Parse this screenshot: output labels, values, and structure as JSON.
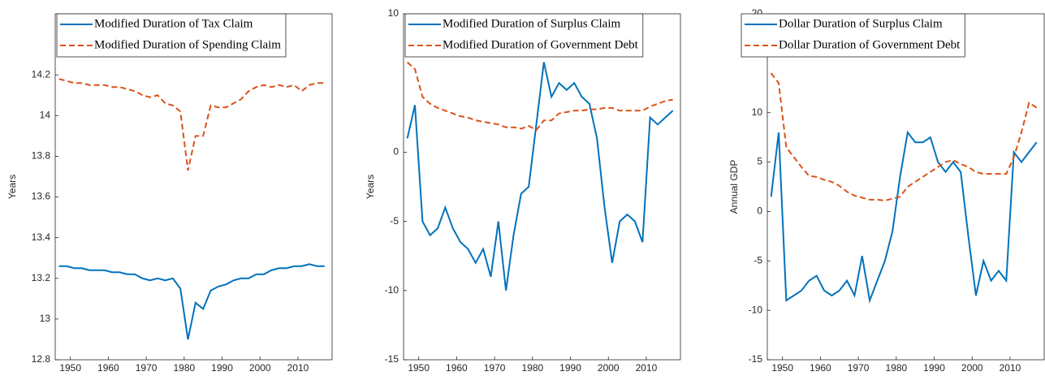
{
  "chart_data": [
    {
      "type": "line",
      "ylabel": "Years",
      "legend": "upper left",
      "x": [
        1947,
        1949,
        1951,
        1953,
        1955,
        1957,
        1959,
        1961,
        1963,
        1965,
        1967,
        1969,
        1971,
        1973,
        1975,
        1977,
        1979,
        1981,
        1983,
        1985,
        1987,
        1989,
        1991,
        1993,
        1995,
        1997,
        1999,
        2001,
        2003,
        2005,
        2007,
        2009,
        2011,
        2013,
        2015,
        2017
      ],
      "xlim": [
        1946,
        2019
      ],
      "xticks": [
        1950,
        1960,
        1970,
        1980,
        1990,
        2000,
        2010
      ],
      "ylim": [
        12.8,
        14.5
      ],
      "yticks": [
        12.8,
        13,
        13.2,
        13.4,
        13.6,
        13.8,
        14,
        14.2
      ],
      "series": [
        {
          "name": "Modified Duration of Tax Claim",
          "color": "#0072bd",
          "dash": "solid",
          "values": [
            13.26,
            13.26,
            13.25,
            13.25,
            13.24,
            13.24,
            13.24,
            13.23,
            13.23,
            13.22,
            13.22,
            13.2,
            13.19,
            13.2,
            13.19,
            13.2,
            13.15,
            12.9,
            13.08,
            13.05,
            13.14,
            13.16,
            13.17,
            13.19,
            13.2,
            13.2,
            13.22,
            13.22,
            13.24,
            13.25,
            13.25,
            13.26,
            13.26,
            13.27,
            13.26,
            13.26
          ]
        },
        {
          "name": "Modified Duration of Spending Claim",
          "color": "#d95319",
          "dash": "dashed",
          "values": [
            14.18,
            14.17,
            14.16,
            14.16,
            14.15,
            14.15,
            14.15,
            14.14,
            14.14,
            14.13,
            14.12,
            14.1,
            14.09,
            14.1,
            14.06,
            14.05,
            14.02,
            13.73,
            13.9,
            13.9,
            14.05,
            14.04,
            14.04,
            14.06,
            14.08,
            14.12,
            14.14,
            14.15,
            14.14,
            14.15,
            14.14,
            14.15,
            14.12,
            14.15,
            14.16,
            14.16
          ]
        }
      ]
    },
    {
      "type": "line",
      "ylabel": "Years",
      "legend": "upper left",
      "x": [
        1947,
        1949,
        1951,
        1953,
        1955,
        1957,
        1959,
        1961,
        1963,
        1965,
        1967,
        1969,
        1971,
        1973,
        1975,
        1977,
        1979,
        1981,
        1983,
        1985,
        1987,
        1989,
        1991,
        1993,
        1995,
        1997,
        1999,
        2001,
        2003,
        2005,
        2007,
        2009,
        2011,
        2013,
        2015,
        2017
      ],
      "xlim": [
        1946,
        2019
      ],
      "xticks": [
        1950,
        1960,
        1970,
        1980,
        1990,
        2000,
        2010
      ],
      "ylim": [
        -15,
        10
      ],
      "yticks": [
        -15,
        -10,
        -5,
        0,
        10
      ],
      "series": [
        {
          "name": "Modified Duration of Surplus Claim",
          "color": "#0072bd",
          "dash": "solid",
          "values": [
            1,
            3.4,
            -5,
            -6,
            -5.5,
            -4,
            -5.5,
            -6.5,
            -7,
            -8,
            -7,
            -9,
            -5,
            -10,
            -6,
            -3,
            -2.5,
            2,
            6.5,
            4,
            5,
            4.5,
            5,
            4,
            3.5,
            1,
            -4,
            -8,
            -5,
            -4.5,
            -5,
            -6.5,
            2.5,
            2,
            2.5,
            3
          ]
        },
        {
          "name": "Modified Duration of Government Debt",
          "color": "#d95319",
          "dash": "dashed",
          "values": [
            6.5,
            6,
            4,
            3.5,
            3.2,
            3,
            2.8,
            2.6,
            2.5,
            2.3,
            2.2,
            2.1,
            2,
            1.8,
            1.8,
            1.7,
            1.9,
            1.6,
            2.3,
            2.3,
            2.8,
            2.9,
            3,
            3,
            3.1,
            3.1,
            3.2,
            3.2,
            3,
            3,
            3,
            3,
            3.3,
            3.5,
            3.7,
            3.8
          ]
        }
      ]
    },
    {
      "type": "line",
      "ylabel": "Annual GDP",
      "legend": "upper left",
      "x": [
        1947,
        1949,
        1951,
        1953,
        1955,
        1957,
        1959,
        1961,
        1963,
        1965,
        1967,
        1969,
        1971,
        1973,
        1975,
        1977,
        1979,
        1981,
        1983,
        1985,
        1987,
        1989,
        1991,
        1993,
        1995,
        1997,
        1999,
        2001,
        2003,
        2005,
        2007,
        2009,
        2011,
        2013,
        2015,
        2017
      ],
      "xlim": [
        1946,
        2019
      ],
      "xticks": [
        1950,
        1960,
        1970,
        1980,
        1990,
        2000,
        2010
      ],
      "ylim": [
        -15,
        20
      ],
      "yticks": [
        -15,
        -10,
        -5,
        0,
        5,
        10,
        20
      ],
      "series": [
        {
          "name": "Dollar Duration of Surplus Claim",
          "color": "#0072bd",
          "dash": "solid",
          "values": [
            1.5,
            8,
            -9,
            -8.5,
            -8,
            -7,
            -6.5,
            -8,
            -8.5,
            -8,
            -7,
            -8.5,
            -4.5,
            -9,
            -7,
            -5,
            -2,
            3.5,
            8,
            7,
            7,
            7.5,
            5,
            4,
            5,
            4,
            -2.5,
            -8.5,
            -5,
            -7,
            -6,
            -7,
            6,
            5,
            6,
            7
          ]
        },
        {
          "name": "Dollar Duration of Government Debt",
          "color": "#d95319",
          "dash": "dashed",
          "values": [
            14,
            13,
            6.5,
            5.5,
            4.5,
            3.6,
            3.5,
            3.2,
            3,
            2.6,
            2,
            1.6,
            1.4,
            1.2,
            1.2,
            1.1,
            1.3,
            1.5,
            2.5,
            3,
            3.5,
            4,
            4.5,
            5,
            5.2,
            4.8,
            4.5,
            4,
            3.8,
            3.8,
            3.8,
            3.8,
            5.5,
            8,
            11,
            10.5
          ]
        }
      ]
    }
  ]
}
